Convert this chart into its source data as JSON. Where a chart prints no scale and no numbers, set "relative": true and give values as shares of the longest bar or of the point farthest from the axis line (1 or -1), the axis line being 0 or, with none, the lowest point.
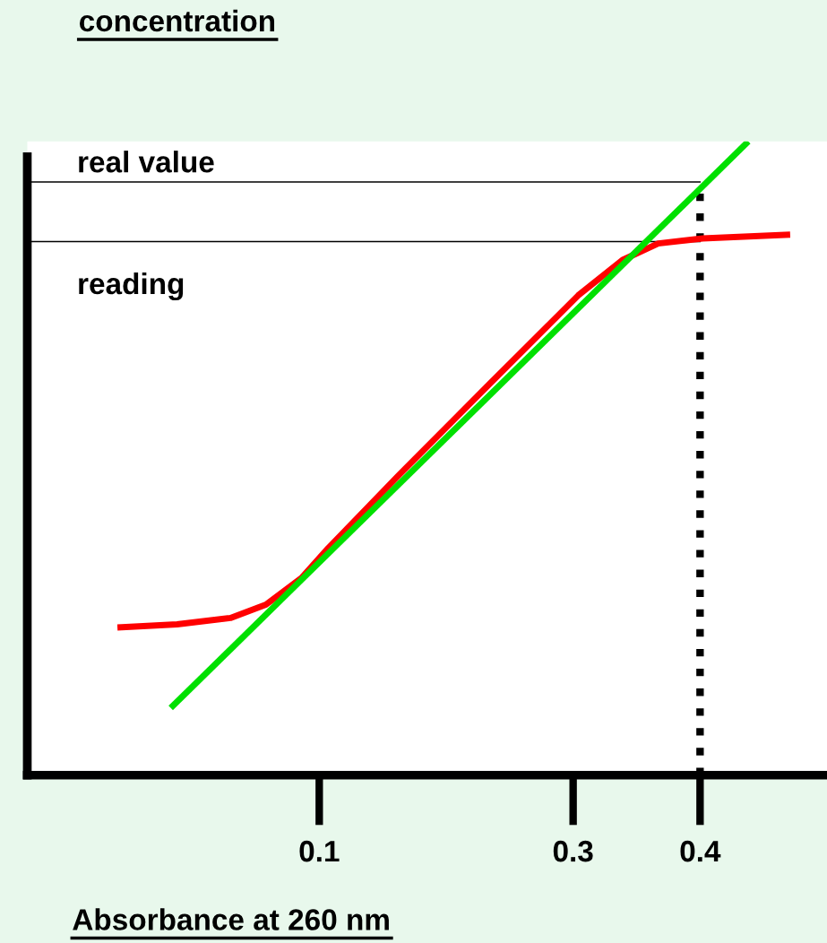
{
  "chart_data": {
    "type": "line",
    "title": "concentration",
    "xlabel": "Absorbance at 260 nm",
    "relative": true,
    "xlim": [
      -0.13,
      0.5
    ],
    "xticks": [
      0.1,
      0.3,
      0.4
    ],
    "grid": false,
    "legend": false,
    "marker": "none",
    "line_style": "solid",
    "series": [
      {
        "color": "#ff0000",
        "x": [
          -0.059,
          -0.012,
          0.03,
          0.058,
          0.086,
          0.107,
          0.163,
          0.233,
          0.304,
          0.339,
          0.367,
          0.402,
          0.471
        ],
        "values": [
          0.233,
          0.238,
          0.248,
          0.269,
          0.311,
          0.358,
          0.474,
          0.615,
          0.757,
          0.813,
          0.839,
          0.847,
          0.853
        ]
      },
      {
        "color": "#00e000",
        "x": [
          -0.017,
          0.438
        ],
        "values": [
          0.106,
          1.0
        ]
      }
    ],
    "ref_lines": [
      {
        "axis": "y",
        "value": 0.936,
        "label": "real value",
        "color": "#000000",
        "line_style": "solid"
      },
      {
        "axis": "y",
        "value": 0.842,
        "label": "reading",
        "color": "#000000",
        "line_style": "solid"
      },
      {
        "axis": "x",
        "value": 0.4,
        "label": null,
        "color": "#000000",
        "line_style": "dotted"
      }
    ]
  }
}
